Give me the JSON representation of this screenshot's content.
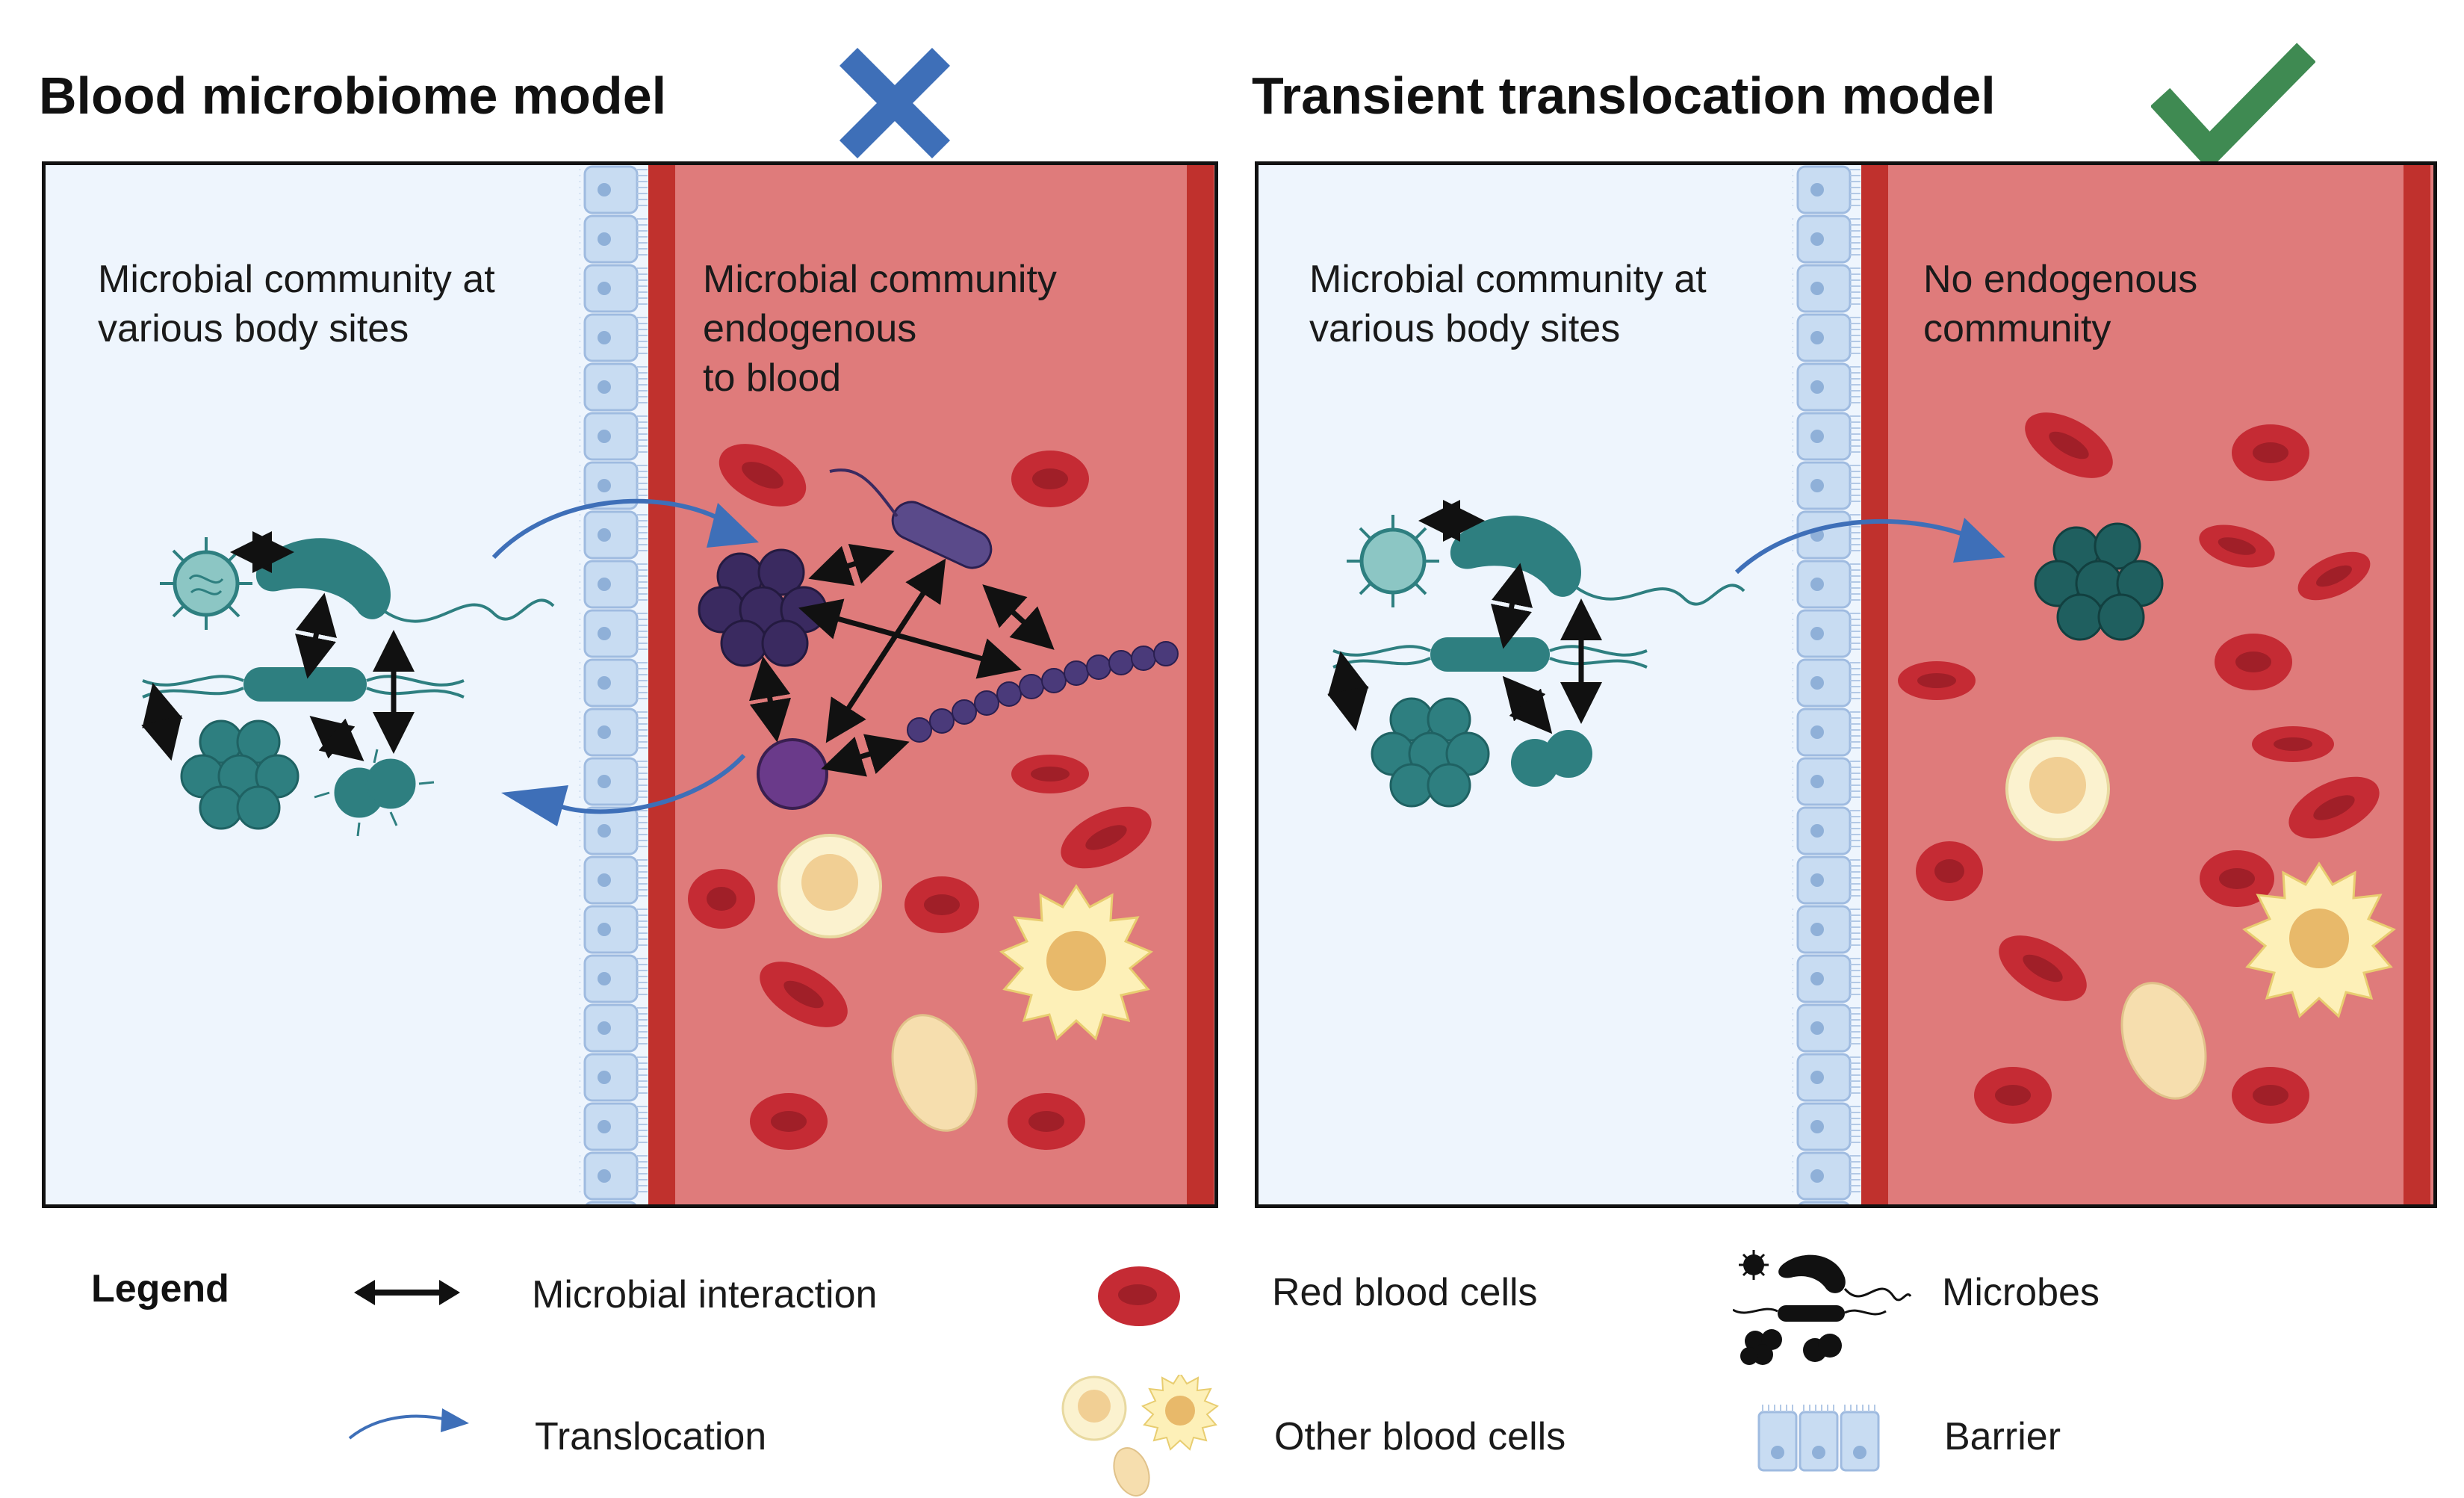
{
  "left_panel": {
    "title": "Blood microbiome model",
    "verdict_icon": "cross-icon",
    "body_sites_label": "Microbial community at\nvarious body sites",
    "blood_label": "Microbial community\nendogenous\nto blood"
  },
  "right_panel": {
    "title": "Transient translocation model",
    "verdict_icon": "check-icon",
    "body_sites_label": "Microbial community at\nvarious body sites",
    "blood_label": "No endogenous\ncommunity"
  },
  "legend": {
    "title": "Legend",
    "items": [
      {
        "icon": "double-arrow-icon",
        "label": "Microbial interaction"
      },
      {
        "icon": "curved-arrow-icon",
        "label": "Translocation"
      },
      {
        "icon": "red-blood-cell-icon",
        "label": "Red blood cells"
      },
      {
        "icon": "white-blood-cells-icon",
        "label": "Other blood cells"
      },
      {
        "icon": "microbes-icon",
        "label": "Microbes"
      },
      {
        "icon": "barrier-icon",
        "label": "Barrier"
      }
    ]
  },
  "colors": {
    "tissue_bg": "#eef5fd",
    "blood_bg": "#df7b7b",
    "vessel_wall": "#c0312d",
    "barrier": "#c8dcf2",
    "microbe": "#2e7f80",
    "blood_microbe": "#4a3770",
    "rbc": "#c52b34",
    "cross": "#3e6fb8",
    "check": "#3f8a52",
    "arrow": "#3e6fb8"
  }
}
